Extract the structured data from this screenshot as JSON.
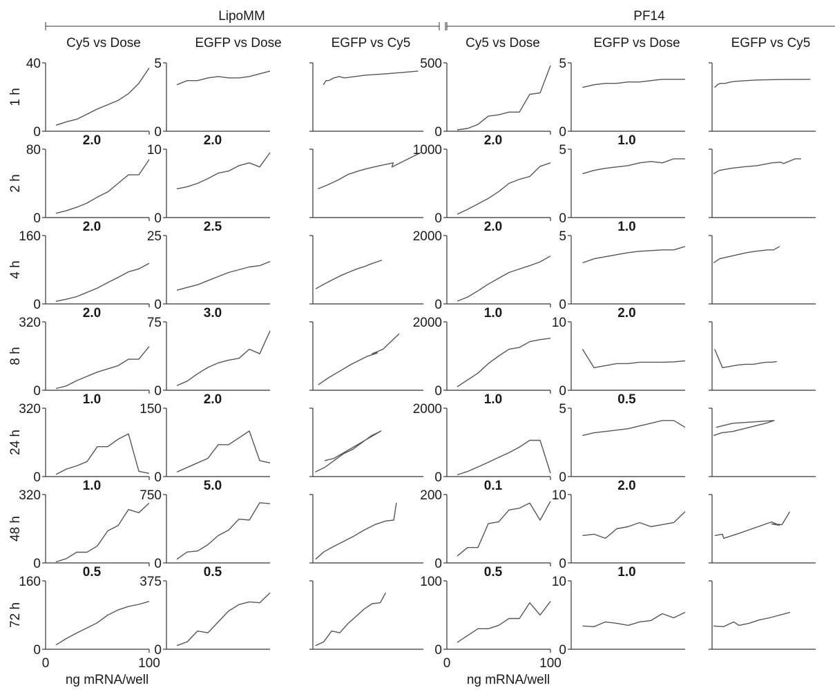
{
  "groups": [
    "LipoMM",
    "PF14"
  ],
  "columns": [
    "Cy5 vs Dose",
    "EGFP vs Dose",
    "EGFP vs Cy5",
    "Cy5 vs Dose",
    "EGFP vs Dose",
    "EGFP vs Cy5"
  ],
  "rows": [
    "1 h",
    "2 h",
    "4 h",
    "8 h",
    "24 h",
    "48 h",
    "72 h"
  ],
  "xlabel": "ng mRNA/well",
  "colors": {
    "line": "#555555",
    "axis": "#333333",
    "text": "#1a1a1a"
  },
  "chart_data": {
    "type": "line",
    "dose_x": [
      10,
      20,
      30,
      40,
      50,
      60,
      70,
      80,
      90,
      100
    ],
    "xlim": [
      0,
      100
    ],
    "xticks": [
      0,
      100
    ],
    "panels": [
      {
        "row": "1 h",
        "col": 0,
        "ymax": "40",
        "ylim": [
          0,
          40
        ],
        "label": "",
        "y": [
          3.5,
          5.5,
          7,
          10,
          13,
          15.5,
          18,
          22,
          28,
          37
        ]
      },
      {
        "row": "1 h",
        "col": 1,
        "ymax": "5",
        "ylim": [
          0,
          5
        ],
        "label": "",
        "y": [
          3.4,
          3.7,
          3.7,
          3.9,
          4.0,
          3.9,
          3.9,
          4.0,
          4.2,
          4.4
        ]
      },
      {
        "row": "1 h",
        "col": 2,
        "label": "",
        "ylim": [
          0,
          5
        ],
        "x": [
          1.0,
          1.05,
          1.1,
          1.2,
          1.3,
          1.4,
          1.6,
          1.8,
          2.2,
          2.8
        ],
        "xlim": [
          0.8,
          2.9
        ],
        "y": [
          3.4,
          3.7,
          3.7,
          3.9,
          4.0,
          3.9,
          4.0,
          4.1,
          4.2,
          4.4
        ]
      },
      {
        "row": "1 h",
        "col": 3,
        "ymax": "500",
        "ylim": [
          0,
          500
        ],
        "label": "",
        "y": [
          10,
          20,
          50,
          110,
          120,
          140,
          140,
          270,
          280,
          480
        ]
      },
      {
        "row": "1 h",
        "col": 4,
        "ymax": "5",
        "ylim": [
          0,
          5
        ],
        "label": "",
        "y": [
          3.2,
          3.4,
          3.5,
          3.5,
          3.6,
          3.6,
          3.7,
          3.8,
          3.8,
          3.8
        ]
      },
      {
        "row": "1 h",
        "col": 5,
        "label": "",
        "ylim": [
          0,
          5
        ],
        "x": [
          1.0,
          1.05,
          1.1,
          1.2,
          1.3,
          1.4,
          1.6,
          1.8,
          2.2,
          2.8
        ],
        "xlim": [
          0.95,
          2.9
        ],
        "y": [
          3.2,
          3.4,
          3.5,
          3.5,
          3.6,
          3.65,
          3.7,
          3.75,
          3.78,
          3.8
        ]
      },
      {
        "row": "2 h",
        "col": 0,
        "ymax": "80",
        "ylim": [
          0,
          80
        ],
        "label": "2.0",
        "y": [
          5,
          8,
          12,
          17,
          24,
          30,
          40,
          50,
          50,
          68
        ]
      },
      {
        "row": "2 h",
        "col": 1,
        "ymax": "10",
        "ylim": [
          0,
          10
        ],
        "label": "2.0",
        "y": [
          4.2,
          4.5,
          5.0,
          5.7,
          6.5,
          6.8,
          7.6,
          8.0,
          7.4,
          9.5
        ]
      },
      {
        "row": "2 h",
        "col": 2,
        "label": "",
        "ylim": [
          0,
          10
        ],
        "x": [
          1.0,
          1.4,
          1.8,
          2.2,
          2.6,
          3.0,
          3.6,
          4.0,
          3.95,
          5.1
        ],
        "xlim": [
          0.8,
          5.2
        ],
        "y": [
          4.2,
          4.8,
          5.5,
          6.3,
          6.8,
          7.2,
          7.7,
          8.0,
          7.4,
          9.5
        ]
      },
      {
        "row": "2 h",
        "col": 3,
        "ymax": "1000",
        "ylim": [
          0,
          1000
        ],
        "label": "2.0",
        "y": [
          50,
          120,
          200,
          280,
          380,
          500,
          560,
          600,
          750,
          800
        ]
      },
      {
        "row": "2 h",
        "col": 4,
        "ymax": "5",
        "ylim": [
          0,
          5
        ],
        "label": "1.0",
        "y": [
          3.2,
          3.45,
          3.6,
          3.7,
          3.8,
          4.0,
          4.1,
          4.0,
          4.3,
          4.3
        ]
      },
      {
        "row": "2 h",
        "col": 5,
        "label": "",
        "ylim": [
          0,
          5
        ],
        "x": [
          1.0,
          1.2,
          1.6,
          2.0,
          2.5,
          3.0,
          3.3,
          3.4,
          3.8,
          4.0
        ],
        "xlim": [
          0.95,
          4.5
        ],
        "y": [
          3.2,
          3.45,
          3.6,
          3.7,
          3.8,
          4.0,
          4.05,
          3.95,
          4.3,
          4.3
        ]
      },
      {
        "row": "4 h",
        "col": 0,
        "ymax": "160",
        "ylim": [
          0,
          160
        ],
        "label": "2.0",
        "y": [
          6,
          11,
          17,
          27,
          37,
          50,
          62,
          75,
          82,
          95
        ]
      },
      {
        "row": "4 h",
        "col": 1,
        "ymax": "25",
        "ylim": [
          0,
          25
        ],
        "label": "2.5",
        "y": [
          5,
          6,
          7,
          8.5,
          10,
          11.5,
          12.5,
          13.5,
          14,
          15.5
        ]
      },
      {
        "row": "4 h",
        "col": 2,
        "label": "",
        "ylim": [
          0,
          25
        ],
        "x": [
          1.0,
          1.3,
          1.6,
          1.9,
          2.2,
          2.5,
          2.8,
          3.0,
          3.2,
          3.4
        ],
        "xlim": [
          0.9,
          4.9
        ],
        "y": [
          5.5,
          7.2,
          8.8,
          10.3,
          11.6,
          12.8,
          13.8,
          14.6,
          15.3,
          16
        ]
      },
      {
        "row": "4 h",
        "col": 3,
        "ymax": "2000",
        "ylim": [
          0,
          2000
        ],
        "label": "2.0",
        "y": [
          80,
          200,
          380,
          580,
          750,
          920,
          1020,
          1120,
          1230,
          1400
        ]
      },
      {
        "row": "4 h",
        "col": 4,
        "ymax": "5",
        "ylim": [
          0,
          5
        ],
        "label": "1.0",
        "y": [
          3.0,
          3.3,
          3.45,
          3.6,
          3.75,
          3.85,
          3.9,
          3.95,
          3.95,
          4.2
        ]
      },
      {
        "row": "4 h",
        "col": 5,
        "label": "",
        "ylim": [
          0,
          5
        ],
        "x": [
          1.0,
          1.2,
          1.5,
          1.8,
          2.1,
          2.4,
          2.6,
          2.8,
          3.0,
          3.2
        ],
        "xlim": [
          0.95,
          4.4
        ],
        "y": [
          3.0,
          3.3,
          3.45,
          3.6,
          3.75,
          3.85,
          3.9,
          3.95,
          3.95,
          4.2
        ]
      },
      {
        "row": "8 h",
        "col": 0,
        "ymax": "320",
        "ylim": [
          0,
          320
        ],
        "label": "2.0",
        "y": [
          8,
          20,
          45,
          65,
          85,
          100,
          115,
          145,
          145,
          205
        ]
      },
      {
        "row": "8 h",
        "col": 1,
        "ymax": "75",
        "ylim": [
          0,
          75
        ],
        "label": "3.0",
        "y": [
          5,
          10,
          18,
          25,
          30,
          33,
          35,
          45,
          40,
          65
        ]
      },
      {
        "row": "8 h",
        "col": 2,
        "label": "",
        "ylim": [
          0,
          75
        ],
        "x": [
          1.0,
          1.4,
          1.8,
          2.2,
          2.6,
          2.8,
          3.2,
          3.0,
          3.4,
          4.0
        ],
        "xlim": [
          0.8,
          4.9
        ],
        "y": [
          6,
          14,
          21,
          28,
          34,
          37,
          41,
          40,
          45,
          62
        ]
      },
      {
        "row": "8 h",
        "col": 3,
        "ymax": "2000",
        "ylim": [
          0,
          2000
        ],
        "label": "1.0",
        "y": [
          100,
          300,
          500,
          780,
          1000,
          1200,
          1250,
          1420,
          1480,
          1520
        ]
      },
      {
        "row": "8 h",
        "col": 4,
        "ymax": "10",
        "ylim": [
          0,
          10
        ],
        "label": "2.0",
        "y": [
          6.0,
          3.3,
          3.6,
          3.9,
          3.9,
          4.1,
          4.1,
          4.1,
          4.15,
          4.3
        ]
      },
      {
        "row": "8 h",
        "col": 5,
        "label": "",
        "ylim": [
          0,
          10
        ],
        "x": [
          1.0,
          1.3,
          1.6,
          1.9,
          2.2,
          2.5,
          2.8,
          3.0,
          3.2,
          3.4
        ],
        "xlim": [
          0.9,
          4.9
        ],
        "y": [
          6.0,
          3.3,
          3.5,
          3.7,
          3.8,
          3.8,
          4.0,
          4.1,
          4.1,
          4.2
        ]
      },
      {
        "row": "24 h",
        "col": 0,
        "ymax": "320",
        "ylim": [
          0,
          320
        ],
        "label": "1.0",
        "y": [
          10,
          35,
          50,
          70,
          140,
          140,
          175,
          200,
          25,
          15
        ]
      },
      {
        "row": "24 h",
        "col": 1,
        "ymax": "150",
        "ylim": [
          0,
          150
        ],
        "label": "2.0",
        "y": [
          10,
          20,
          30,
          40,
          70,
          70,
          85,
          100,
          35,
          30
        ]
      },
      {
        "row": "24 h",
        "col": 2,
        "label": "",
        "ylim": [
          0,
          150
        ],
        "x": [
          1.0,
          1.4,
          1.8,
          2.2,
          2.6,
          3.0,
          3.4,
          3.8,
          1.8,
          1.4
        ],
        "xlim": [
          0.9,
          5.6
        ],
        "y": [
          10,
          20,
          35,
          50,
          60,
          75,
          90,
          100,
          40,
          35
        ]
      },
      {
        "row": "24 h",
        "col": 3,
        "ymax": "2000",
        "ylim": [
          0,
          2000
        ],
        "label": "1.0",
        "y": [
          50,
          150,
          280,
          420,
          560,
          700,
          860,
          1060,
          1060,
          100
        ]
      },
      {
        "row": "24 h",
        "col": 4,
        "ymax": "5",
        "ylim": [
          0,
          5
        ],
        "label": "0.5",
        "y": [
          3.0,
          3.2,
          3.3,
          3.4,
          3.5,
          3.7,
          3.9,
          4.1,
          4.1,
          3.6
        ]
      },
      {
        "row": "24 h",
        "col": 5,
        "label": "",
        "ylim": [
          0,
          5
        ],
        "x": [
          1.0,
          1.3,
          1.7,
          2.1,
          2.5,
          2.9,
          3.2,
          1.7,
          1.3,
          1.1
        ],
        "xlim": [
          0.95,
          4.7
        ],
        "y": [
          3.0,
          3.2,
          3.3,
          3.5,
          3.7,
          3.9,
          4.1,
          3.9,
          3.7,
          3.6
        ]
      },
      {
        "row": "48 h",
        "col": 0,
        "ymax": "320",
        "ylim": [
          0,
          320
        ],
        "label": "1.0",
        "y": [
          5,
          20,
          50,
          50,
          80,
          150,
          175,
          250,
          235,
          280
        ]
      },
      {
        "row": "48 h",
        "col": 1,
        "ymax": "750",
        "ylim": [
          0,
          750
        ],
        "label": "5.0",
        "y": [
          40,
          120,
          130,
          200,
          300,
          360,
          480,
          470,
          660,
          650
        ]
      },
      {
        "row": "48 h",
        "col": 2,
        "label": "",
        "ylim": [
          0,
          750
        ],
        "x": [
          1.0,
          1.3,
          1.6,
          2.0,
          2.4,
          2.8,
          3.2,
          3.6,
          3.9,
          4.0
        ],
        "xlim": [
          0.9,
          5.0
        ],
        "y": [
          40,
          120,
          170,
          230,
          290,
          360,
          420,
          460,
          470,
          660
        ]
      },
      {
        "row": "48 h",
        "col": 3,
        "ymax": "200",
        "ylim": [
          0,
          200
        ],
        "label": "0.1",
        "y": [
          20,
          45,
          45,
          115,
          120,
          155,
          160,
          175,
          125,
          180
        ]
      },
      {
        "row": "48 h",
        "col": 4,
        "ymax": "10",
        "ylim": [
          0,
          10
        ],
        "label": "2.0",
        "y": [
          4.0,
          4.2,
          3.6,
          5.0,
          5.3,
          5.9,
          5.3,
          5.6,
          5.9,
          7.5
        ]
      },
      {
        "row": "48 h",
        "col": 5,
        "label": "",
        "ylim": [
          0,
          10
        ],
        "x": [
          1.0,
          1.3,
          1.35,
          2.0,
          2.6,
          3.2,
          3.5,
          3.2,
          3.6,
          3.9
        ],
        "xlim": [
          0.9,
          4.9
        ],
        "y": [
          4.0,
          4.2,
          3.6,
          4.4,
          5.2,
          6.0,
          5.5,
          5.7,
          5.6,
          7.5
        ]
      },
      {
        "row": "72 h",
        "col": 0,
        "ymax": "160",
        "ylim": [
          0,
          160
        ],
        "label": "0.5",
        "y": [
          10,
          25,
          38,
          50,
          62,
          80,
          92,
          100,
          105,
          112
        ]
      },
      {
        "row": "72 h",
        "col": 1,
        "ymax": "375",
        "ylim": [
          0,
          375
        ],
        "label": "0.5",
        "y": [
          20,
          40,
          100,
          90,
          150,
          210,
          245,
          260,
          255,
          310
        ]
      },
      {
        "row": "72 h",
        "col": 2,
        "label": "",
        "ylim": [
          0,
          375
        ],
        "x": [
          1.0,
          1.3,
          1.6,
          1.9,
          2.2,
          2.5,
          2.8,
          3.1,
          3.4,
          3.6
        ],
        "xlim": [
          0.9,
          5.0
        ],
        "y": [
          20,
          40,
          100,
          90,
          140,
          180,
          220,
          250,
          255,
          310
        ]
      },
      {
        "row": "72 h",
        "col": 3,
        "ymax": "100",
        "ylim": [
          0,
          100
        ],
        "label": "0.5",
        "y": [
          10,
          20,
          30,
          30,
          35,
          45,
          45,
          68,
          50,
          70
        ]
      },
      {
        "row": "72 h",
        "col": 4,
        "ymax": "10",
        "ylim": [
          0,
          10
        ],
        "label": "1.0",
        "y": [
          3.4,
          3.3,
          4.0,
          3.8,
          3.5,
          4.0,
          4.2,
          5.2,
          4.6,
          5.4
        ]
      },
      {
        "row": "72 h",
        "col": 5,
        "label": "",
        "ylim": [
          0,
          10
        ],
        "x": [
          1.0,
          1.4,
          1.8,
          2.0,
          2.4,
          2.8,
          3.2,
          3.6,
          3.4,
          4.0
        ],
        "xlim": [
          0.95,
          5.0
        ],
        "y": [
          3.4,
          3.3,
          4.0,
          3.5,
          3.8,
          4.3,
          4.6,
          5.0,
          4.8,
          5.4
        ]
      }
    ]
  }
}
